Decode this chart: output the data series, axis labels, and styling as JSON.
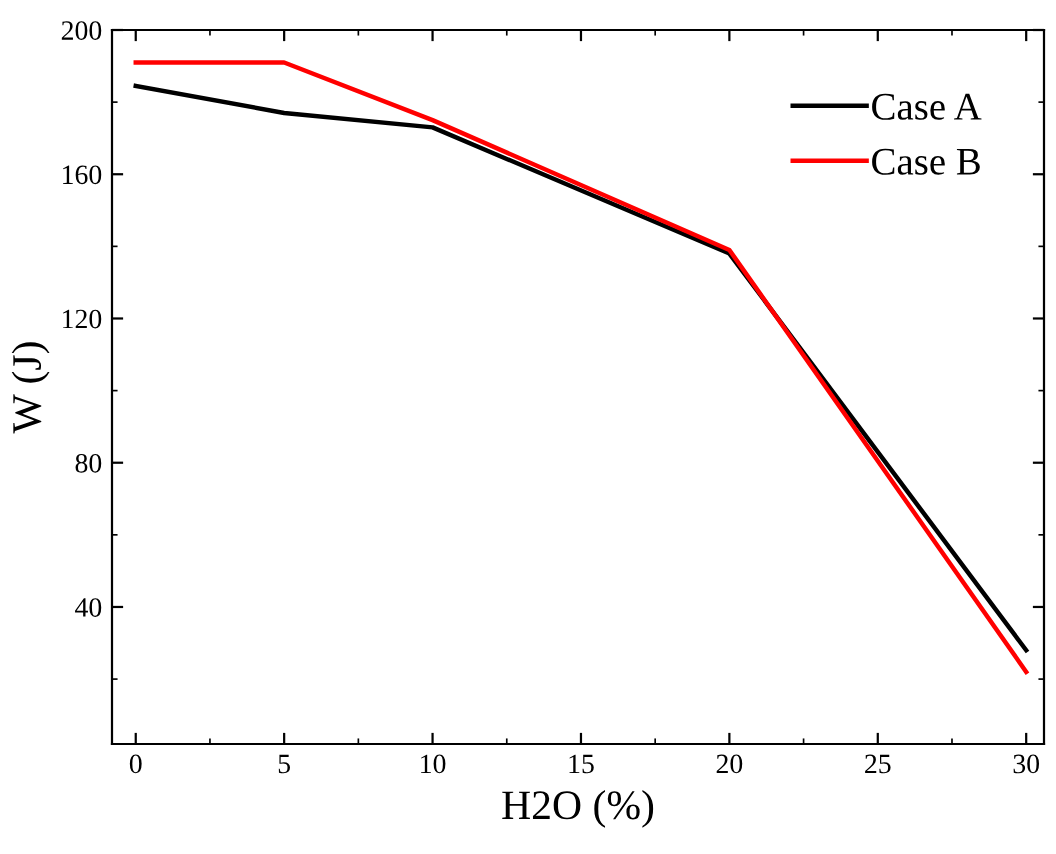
{
  "chart_data": {
    "type": "line",
    "xlabel": "H2O (%)",
    "ylabel": "W (J)",
    "x": [
      0,
      5,
      10,
      20,
      30
    ],
    "series": [
      {
        "name": "Case A",
        "color": "#000000",
        "values": [
          184.5,
          177,
          173,
          138,
          28
        ]
      },
      {
        "name": "Case B",
        "color": "#ff0000",
        "values": [
          191,
          191,
          175,
          139,
          22
        ]
      }
    ],
    "xlim": [
      -0.8,
      30.6
    ],
    "ylim": [
      2,
      200
    ],
    "xticks": [
      0,
      5,
      10,
      15,
      20,
      25,
      30
    ],
    "yticks": [
      40,
      80,
      120,
      160,
      200
    ],
    "grid": false,
    "legend": "top right",
    "marker": "none",
    "line_style": "solid"
  }
}
